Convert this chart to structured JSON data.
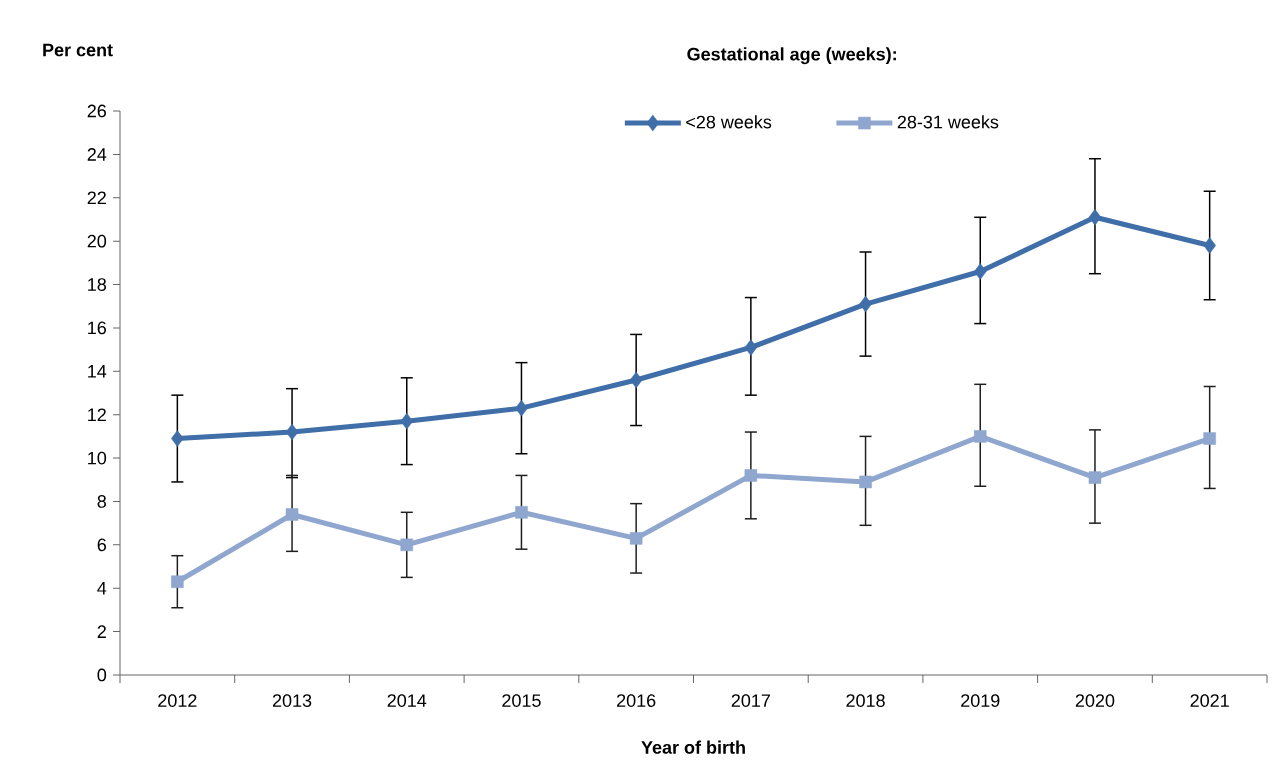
{
  "chart_data": {
    "type": "line",
    "ylabel": "Per cent",
    "xlabel": "Year of birth",
    "legend_title": "Gestational age (weeks):",
    "legend": "top",
    "categories": [
      "2012",
      "2013",
      "2014",
      "2015",
      "2016",
      "2017",
      "2018",
      "2019",
      "2020",
      "2021"
    ],
    "ylim": [
      0,
      26
    ],
    "yticks": [
      0,
      2,
      4,
      6,
      8,
      10,
      12,
      14,
      16,
      18,
      20,
      22,
      24,
      26
    ],
    "series": [
      {
        "name": "<28 weeks",
        "color": "#3f6ea8",
        "marker": "diamond",
        "values": [
          10.9,
          11.2,
          11.7,
          12.3,
          13.6,
          15.1,
          17.1,
          18.6,
          21.1,
          19.8
        ],
        "errors": [
          [
            8.9,
            12.9
          ],
          [
            9.1,
            13.2
          ],
          [
            9.7,
            13.7
          ],
          [
            10.2,
            14.4
          ],
          [
            11.5,
            15.7
          ],
          [
            12.9,
            17.4
          ],
          [
            14.7,
            19.5
          ],
          [
            16.2,
            21.1
          ],
          [
            18.5,
            23.8
          ],
          [
            17.3,
            22.3
          ]
        ]
      },
      {
        "name": "28-31 weeks",
        "color": "#8fa6cf",
        "marker": "square",
        "values": [
          4.3,
          7.4,
          6.0,
          7.5,
          6.3,
          9.2,
          8.9,
          11.0,
          9.1,
          10.9
        ],
        "errors": [
          [
            3.1,
            5.5
          ],
          [
            5.7,
            9.2
          ],
          [
            4.5,
            7.5
          ],
          [
            5.8,
            9.2
          ],
          [
            4.7,
            7.9
          ],
          [
            7.2,
            11.2
          ],
          [
            6.9,
            11.0
          ],
          [
            8.7,
            13.4
          ],
          [
            7.0,
            11.3
          ],
          [
            8.6,
            13.3
          ]
        ]
      }
    ]
  }
}
